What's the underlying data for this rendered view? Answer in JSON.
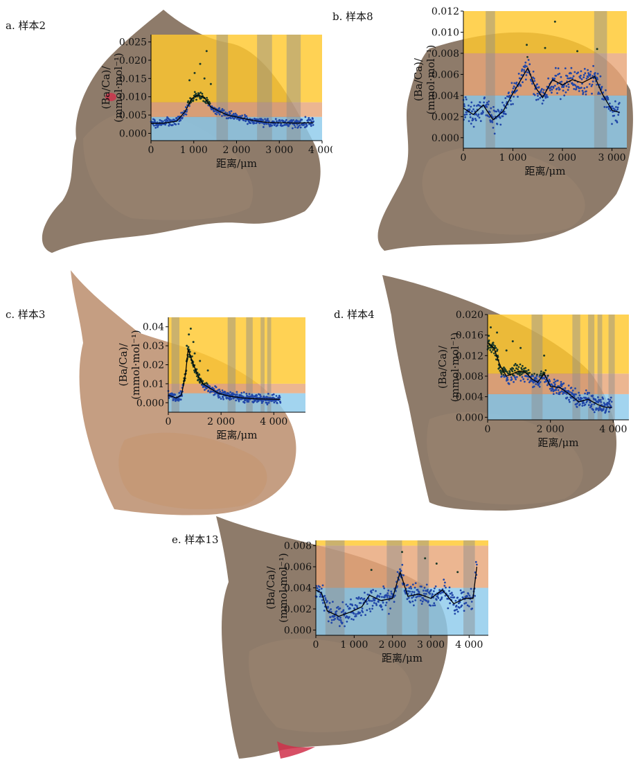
{
  "colors": {
    "band_high": "#FFC82E",
    "band_mid": "#E8A679",
    "band_low": "#8ECBEB",
    "stripe": "#8C8C8C",
    "dot": "#2147A8",
    "dot_dark": "#1A3A2A",
    "line": "#000000",
    "otolith_brown": "#7A6450",
    "otolith_tan": "#B78663",
    "otolith_red": "#D0304A"
  },
  "panels": [
    {
      "id": "a",
      "label": "a. 样本2"
    },
    {
      "id": "b",
      "label": "b. 样本8"
    },
    {
      "id": "c",
      "label": "c. 样本3"
    },
    {
      "id": "d",
      "label": "d. 样本4"
    },
    {
      "id": "e",
      "label": "e. 样本13"
    }
  ],
  "chart_data": [
    {
      "panel": "a",
      "type": "scatter",
      "xlabel": "距离/μm",
      "ylabel": [
        "(Ba/Ca)/",
        "(mmol·mol⁻¹)"
      ],
      "xlim": [
        0,
        4000
      ],
      "ylim": [
        -0.002,
        0.027
      ],
      "xticks": [
        0,
        1000,
        2000,
        3000,
        4000
      ],
      "xtick_labels": [
        "0",
        "1 000",
        "2 000",
        "3 000",
        "4 000"
      ],
      "yticks": [
        0,
        0.005,
        0.01,
        0.015,
        0.02,
        0.025
      ],
      "ytick_labels": [
        "0.000",
        "0.005",
        "0.010",
        "0.015",
        "0.020",
        "0.025"
      ],
      "data_x_max": 3800,
      "bands": [
        {
          "from": -0.002,
          "to": 0.0045,
          "level": "low"
        },
        {
          "from": 0.0045,
          "to": 0.0085,
          "level": "mid"
        },
        {
          "from": 0.0085,
          "to": 0.027,
          "level": "high"
        }
      ],
      "stripes": [
        [
          1530,
          1800
        ],
        [
          2480,
          2830
        ],
        [
          3170,
          3500
        ]
      ],
      "profile": [
        [
          0,
          0.0027
        ],
        [
          300,
          0.0028
        ],
        [
          600,
          0.0033
        ],
        [
          800,
          0.006
        ],
        [
          950,
          0.0095
        ],
        [
          1100,
          0.0105
        ],
        [
          1250,
          0.0098
        ],
        [
          1400,
          0.0072
        ],
        [
          1600,
          0.006
        ],
        [
          1800,
          0.005
        ],
        [
          2100,
          0.0042
        ],
        [
          2400,
          0.0035
        ],
        [
          2700,
          0.003
        ],
        [
          3000,
          0.0029
        ],
        [
          3400,
          0.0028
        ],
        [
          3800,
          0.0029
        ]
      ],
      "noise": 0.0009,
      "outliers": [
        [
          1300,
          0.0225
        ],
        [
          1150,
          0.019
        ],
        [
          1020,
          0.0165
        ],
        [
          1250,
          0.015
        ],
        [
          900,
          0.0145
        ],
        [
          1400,
          0.0135
        ]
      ]
    },
    {
      "panel": "b",
      "type": "scatter",
      "xlabel": "距离/μm",
      "ylabel": [
        "(Ba/Ca)/",
        "(mmol·mol⁻¹)"
      ],
      "xlim": [
        0,
        3300
      ],
      "ylim": [
        -0.001,
        0.012
      ],
      "xticks": [
        0,
        1000,
        2000,
        3000
      ],
      "xtick_labels": [
        "0",
        "1 000",
        "2 000",
        "3 000"
      ],
      "yticks": [
        0,
        0.002,
        0.004,
        0.006,
        0.008,
        0.01,
        0.012
      ],
      "ytick_labels": [
        "0.000",
        "0.002",
        "0.004",
        "0.006",
        "0.008",
        "0.010",
        "0.012"
      ],
      "data_x_max": 3150,
      "bands": [
        {
          "from": -0.001,
          "to": 0.004,
          "level": "low"
        },
        {
          "from": 0.004,
          "to": 0.008,
          "level": "mid"
        },
        {
          "from": 0.008,
          "to": 0.012,
          "level": "high"
        }
      ],
      "stripes": [
        [
          450,
          640
        ],
        [
          2640,
          2900
        ]
      ],
      "profile": [
        [
          0,
          0.0028
        ],
        [
          200,
          0.0022
        ],
        [
          400,
          0.0031
        ],
        [
          600,
          0.0017
        ],
        [
          800,
          0.0025
        ],
        [
          1000,
          0.0042
        ],
        [
          1200,
          0.0058
        ],
        [
          1300,
          0.0066
        ],
        [
          1450,
          0.0048
        ],
        [
          1600,
          0.0038
        ],
        [
          1800,
          0.0055
        ],
        [
          2000,
          0.005
        ],
        [
          2200,
          0.0055
        ],
        [
          2400,
          0.0052
        ],
        [
          2650,
          0.0058
        ],
        [
          2800,
          0.0042
        ],
        [
          3000,
          0.0026
        ],
        [
          3150,
          0.0024
        ]
      ],
      "noise": 0.0009,
      "outliers": [
        [
          1850,
          0.011
        ],
        [
          1280,
          0.0088
        ],
        [
          1650,
          0.0085
        ],
        [
          2700,
          0.0084
        ],
        [
          2300,
          0.0082
        ]
      ]
    },
    {
      "panel": "c",
      "type": "scatter",
      "xlabel": "距离/μm",
      "ylabel": [
        "(Ba/Ca)/",
        "(mmol·mol⁻¹)"
      ],
      "xlim": [
        0,
        5200
      ],
      "ylim": [
        -0.005,
        0.045
      ],
      "xticks": [
        0,
        2000,
        4000
      ],
      "xtick_labels": [
        "0",
        "2 000",
        "4 000"
      ],
      "yticks": [
        0,
        0.01,
        0.02,
        0.03,
        0.04
      ],
      "ytick_labels": [
        "0.000",
        "0.01",
        "0.02",
        "0.03",
        "0.04"
      ],
      "data_x_max": 4250,
      "bands": [
        {
          "from": -0.005,
          "to": 0.005,
          "level": "low"
        },
        {
          "from": 0.005,
          "to": 0.01,
          "level": "mid"
        },
        {
          "from": 0.01,
          "to": 0.045,
          "level": "high"
        }
      ],
      "stripes": [
        [
          120,
          420
        ],
        [
          2250,
          2550
        ],
        [
          2950,
          3200
        ],
        [
          3500,
          3650
        ],
        [
          3750,
          3900
        ]
      ],
      "profile": [
        [
          0,
          0.004
        ],
        [
          300,
          0.0025
        ],
        [
          500,
          0.004
        ],
        [
          650,
          0.015
        ],
        [
          750,
          0.028
        ],
        [
          900,
          0.022
        ],
        [
          1100,
          0.015
        ],
        [
          1300,
          0.01
        ],
        [
          1600,
          0.0075
        ],
        [
          1900,
          0.005
        ],
        [
          2300,
          0.0035
        ],
        [
          2800,
          0.0025
        ],
        [
          3400,
          0.002
        ],
        [
          4250,
          0.0018
        ]
      ],
      "noise": 0.0018,
      "outliers": [
        [
          850,
          0.039
        ],
        [
          780,
          0.036
        ],
        [
          950,
          0.032
        ],
        [
          700,
          0.03
        ],
        [
          1000,
          0.026
        ],
        [
          1200,
          0.022
        ],
        [
          1500,
          0.017
        ]
      ]
    },
    {
      "panel": "d",
      "type": "scatter",
      "xlabel": "距离/μm",
      "ylabel": [
        "(Ba/Ca)/",
        "(mmol·mol⁻¹)"
      ],
      "xlim": [
        0,
        4500
      ],
      "ylim": [
        -0.0005,
        0.02
      ],
      "xticks": [
        0,
        2000,
        4000
      ],
      "xtick_labels": [
        "0",
        "2 000",
        "4 000"
      ],
      "yticks": [
        0,
        0.004,
        0.008,
        0.012,
        0.016,
        0.02
      ],
      "ytick_labels": [
        "0.000",
        "0.004",
        "0.008",
        "0.012",
        "0.016",
        "0.020"
      ],
      "data_x_max": 3950,
      "bands": [
        {
          "from": -0.0005,
          "to": 0.0045,
          "level": "low"
        },
        {
          "from": 0.0045,
          "to": 0.0085,
          "level": "mid"
        },
        {
          "from": 0.0085,
          "to": 0.02,
          "level": "high"
        }
      ],
      "stripes": [
        [
          1400,
          1750
        ],
        [
          2700,
          2950
        ],
        [
          3200,
          3400
        ],
        [
          3500,
          3650
        ],
        [
          3850,
          4050
        ]
      ],
      "profile": [
        [
          0,
          0.0145
        ],
        [
          200,
          0.0135
        ],
        [
          400,
          0.01
        ],
        [
          600,
          0.008
        ],
        [
          800,
          0.0085
        ],
        [
          1000,
          0.009
        ],
        [
          1200,
          0.0088
        ],
        [
          1400,
          0.0075
        ],
        [
          1600,
          0.0068
        ],
        [
          1800,
          0.0085
        ],
        [
          2000,
          0.006
        ],
        [
          2300,
          0.0058
        ],
        [
          2600,
          0.0045
        ],
        [
          2900,
          0.003
        ],
        [
          3200,
          0.0035
        ],
        [
          3500,
          0.0025
        ],
        [
          3700,
          0.002
        ],
        [
          3950,
          0.0019
        ]
      ],
      "noise": 0.0012,
      "outliers": [
        [
          100,
          0.0175
        ],
        [
          300,
          0.0165
        ],
        [
          800,
          0.0148
        ],
        [
          1050,
          0.0135
        ],
        [
          1800,
          0.012
        ],
        [
          600,
          0.013
        ]
      ]
    },
    {
      "panel": "e",
      "type": "scatter",
      "xlabel": "距离/μm",
      "ylabel": [
        "(Ba/Ca)/",
        "(mmol·mol⁻¹)"
      ],
      "xlim": [
        0,
        4500
      ],
      "ylim": [
        -0.0005,
        0.0085
      ],
      "xticks": [
        0,
        1000,
        2000,
        3000,
        4000
      ],
      "xtick_labels": [
        "0",
        "1 000",
        "2 000",
        "3 000",
        "4 000"
      ],
      "yticks": [
        0,
        0.002,
        0.004,
        0.006,
        0.008
      ],
      "ytick_labels": [
        "0.000",
        "0.002",
        "0.004",
        "0.006",
        "0.008"
      ],
      "data_x_max": 4200,
      "bands": [
        {
          "from": -0.0005,
          "to": 0.004,
          "level": "low"
        },
        {
          "from": 0.004,
          "to": 0.008,
          "level": "mid"
        },
        {
          "from": 0.008,
          "to": 0.0085,
          "level": "high"
        }
      ],
      "stripes": [
        [
          250,
          750
        ],
        [
          1850,
          2250
        ],
        [
          2650,
          2950
        ],
        [
          3850,
          4150
        ]
      ],
      "profile": [
        [
          0,
          0.0038
        ],
        [
          150,
          0.0035
        ],
        [
          300,
          0.0018
        ],
        [
          600,
          0.0013
        ],
        [
          900,
          0.0017
        ],
        [
          1200,
          0.0022
        ],
        [
          1400,
          0.0033
        ],
        [
          1700,
          0.0028
        ],
        [
          2000,
          0.003
        ],
        [
          2200,
          0.0055
        ],
        [
          2400,
          0.0032
        ],
        [
          2700,
          0.0034
        ],
        [
          3000,
          0.003
        ],
        [
          3300,
          0.0038
        ],
        [
          3600,
          0.0025
        ],
        [
          3900,
          0.003
        ],
        [
          4100,
          0.003
        ],
        [
          4200,
          0.006
        ]
      ],
      "noise": 0.0008,
      "outliers": [
        [
          2250,
          0.0074
        ],
        [
          2850,
          0.0068
        ],
        [
          3150,
          0.0063
        ],
        [
          1450,
          0.0057
        ],
        [
          3700,
          0.0055
        ]
      ]
    }
  ]
}
